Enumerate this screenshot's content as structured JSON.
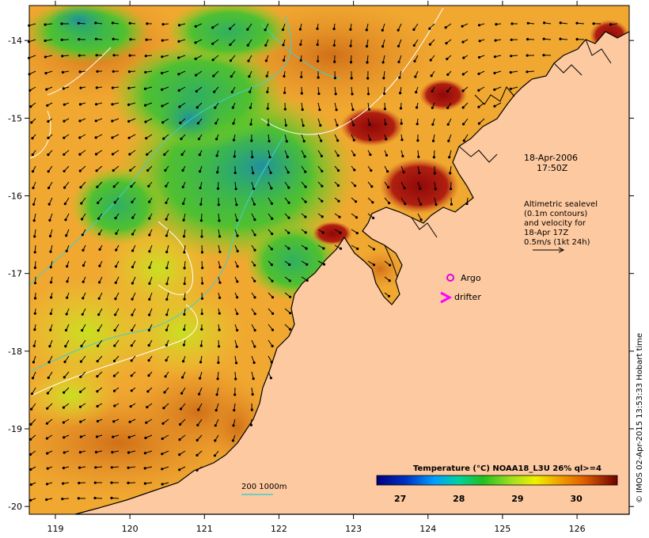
{
  "map": {
    "lon_ticks": [
      "119",
      "120",
      "121",
      "122",
      "123",
      "124",
      "125",
      "126"
    ],
    "lat_ticks": [
      "-14",
      "-15",
      "-16",
      "-17",
      "-18",
      "-19",
      "-20"
    ],
    "lon_values": [
      119,
      120,
      121,
      122,
      123,
      124,
      125,
      126
    ],
    "lat_values": [
      -14,
      -15,
      -16,
      -17,
      -18,
      -19,
      -20
    ],
    "lon_range": [
      118.65,
      126.7
    ],
    "lat_range": [
      -20.1,
      -13.55
    ]
  },
  "annotations": {
    "date": "18-Apr-2006",
    "time": "17:50Z",
    "altimetry_lines": [
      "Altimetric sealevel",
      "(0.1m contours)",
      "and velocity for",
      "18-Apr 17Z",
      "0.5m/s (1kt 24h)"
    ],
    "argo_label": "Argo",
    "drifter_label": "drifter",
    "depth_legend": "200  1000m",
    "credit": "© IMOS 02-Apr-2015 13:53:33 Hobart time"
  },
  "colorbar": {
    "title": "Temperature (°C) NOAA18_L3U 26% ql>=4",
    "tick_labels": [
      "27",
      "28",
      "29",
      "30"
    ],
    "tick_values": [
      27,
      28,
      29,
      30
    ],
    "range": [
      26.6,
      30.7
    ]
  },
  "colors": {
    "land": "#fdc9a0",
    "ocean_warm": "#f0a030",
    "ocean_mid": "#f5c040",
    "ocean_cool": "#40c040",
    "ocean_cold": "#20a0a0",
    "hot": "#a01010",
    "argo": "#e000e0",
    "drifter": "#ff00ff",
    "isobath": "#40d0d0",
    "contour": "#ffffff"
  }
}
